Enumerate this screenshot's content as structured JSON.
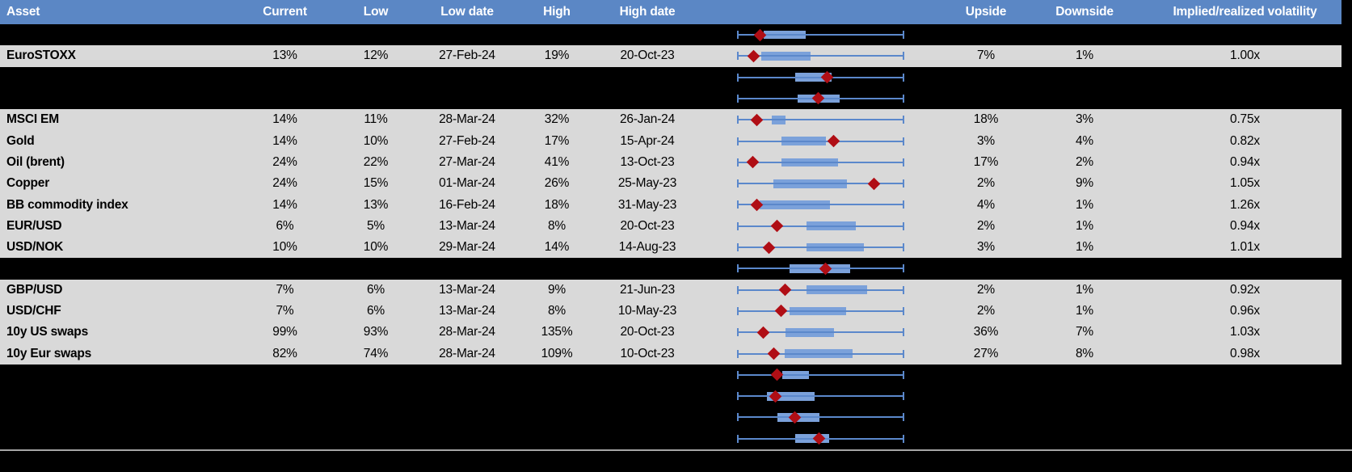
{
  "colors": {
    "header_bg": "#5b87c5",
    "row_bg": "#d9d9d9",
    "hidden_row_bg": "#000000",
    "whisker_blue": "#5b88cb",
    "box_blue": "#7ba1da",
    "marker_red": "#b00e15",
    "bottom_divider": "#a6a6a6"
  },
  "chart_data": {
    "type": "table",
    "note_type": "table with per-row horizontal box-whisker plots; whisker spans low-to-high, red diamond marks current level, positions given as 0-1 fractions of whisker span",
    "columns": [
      "Asset",
      "Current",
      "Low",
      "Low date",
      "High",
      "High date",
      "",
      "Upside",
      "Downside",
      "Implied/realized volatility"
    ],
    "rows": [
      {
        "type": "hidden",
        "label": "",
        "current": "",
        "low": "",
        "low_date": "",
        "high": "",
        "high_date": "",
        "upside": "",
        "downside": "",
        "ratio": "",
        "plot": {
          "box": [
            0.156,
            0.41
          ],
          "diamond": 0.132
        }
      },
      {
        "type": "data",
        "label": "EuroSTOXX",
        "current": "13%",
        "low": "12%",
        "low_date": "27-Feb-24",
        "high": "19%",
        "high_date": "20-Oct-23",
        "upside": "7%",
        "downside": "1%",
        "ratio": "1.00x",
        "plot": {
          "box": [
            0.141,
            0.439
          ],
          "diamond": 0.093
        }
      },
      {
        "type": "hidden",
        "label": "",
        "current": "",
        "low": "",
        "low_date": "",
        "high": "",
        "high_date": "",
        "upside": "",
        "downside": "",
        "ratio": "",
        "plot": {
          "box": [
            0.346,
            0.566
          ],
          "diamond": 0.537
        }
      },
      {
        "type": "hidden",
        "label": "",
        "current": "",
        "low": "",
        "low_date": "",
        "high": "",
        "high_date": "",
        "upside": "",
        "downside": "",
        "ratio": "",
        "plot": {
          "box": [
            0.361,
            0.615
          ],
          "diamond": 0.483
        }
      },
      {
        "type": "data",
        "label": "MSCI EM",
        "current": "14%",
        "low": "11%",
        "low_date": "28-Mar-24",
        "high": "32%",
        "high_date": "26-Jan-24",
        "upside": "18%",
        "downside": "3%",
        "ratio": "0.75x",
        "plot": {
          "box": [
            0.205,
            0.288
          ],
          "diamond": 0.117
        }
      },
      {
        "type": "data",
        "label": "Gold",
        "current": "14%",
        "low": "10%",
        "low_date": "27-Feb-24",
        "high": "17%",
        "high_date": "15-Apr-24",
        "upside": "3%",
        "downside": "4%",
        "ratio": "0.82x",
        "plot": {
          "box": [
            0.263,
            0.532
          ],
          "diamond": 0.576
        }
      },
      {
        "type": "data",
        "label": "Oil (brent)",
        "current": "24%",
        "low": "22%",
        "low_date": "27-Mar-24",
        "high": "41%",
        "high_date": "13-Oct-23",
        "upside": "17%",
        "downside": "2%",
        "ratio": "0.94x",
        "plot": {
          "box": [
            0.263,
            0.605
          ],
          "diamond": 0.088
        }
      },
      {
        "type": "data",
        "label": "Copper",
        "current": "24%",
        "low": "15%",
        "low_date": "01-Mar-24",
        "high": "26%",
        "high_date": "25-May-23",
        "upside": "2%",
        "downside": "9%",
        "ratio": "1.05x",
        "plot": {
          "box": [
            0.215,
            0.659
          ],
          "diamond": 0.824
        }
      },
      {
        "type": "data",
        "label": "BB commodity index",
        "current": "14%",
        "low": "13%",
        "low_date": "16-Feb-24",
        "high": "18%",
        "high_date": "31-May-23",
        "upside": "4%",
        "downside": "1%",
        "ratio": "1.26x",
        "plot": {
          "box": [
            0.132,
            0.556
          ],
          "diamond": 0.117
        }
      },
      {
        "type": "data",
        "label": "EUR/USD",
        "current": "6%",
        "low": "5%",
        "low_date": "13-Mar-24",
        "high": "8%",
        "high_date": "20-Oct-23",
        "upside": "2%",
        "downside": "1%",
        "ratio": "0.94x",
        "plot": {
          "box": [
            0.415,
            0.712
          ],
          "diamond": 0.239
        }
      },
      {
        "type": "data",
        "label": "USD/NOK",
        "current": "10%",
        "low": "10%",
        "low_date": "29-Mar-24",
        "high": "14%",
        "high_date": "14-Aug-23",
        "upside": "3%",
        "downside": "1%",
        "ratio": "1.01x",
        "plot": {
          "box": [
            0.415,
            0.761
          ],
          "diamond": 0.19
        }
      },
      {
        "type": "hidden",
        "label": "",
        "current": "",
        "low": "",
        "low_date": "",
        "high": "",
        "high_date": "",
        "upside": "",
        "downside": "",
        "ratio": "",
        "plot": {
          "box": [
            0.312,
            0.678
          ],
          "diamond": 0.527
        }
      },
      {
        "type": "data",
        "label": "GBP/USD",
        "current": "7%",
        "low": "6%",
        "low_date": "13-Mar-24",
        "high": "9%",
        "high_date": "21-Jun-23",
        "upside": "2%",
        "downside": "1%",
        "ratio": "0.92x",
        "plot": {
          "box": [
            0.415,
            0.78
          ],
          "diamond": 0.283
        }
      },
      {
        "type": "data",
        "label": "USD/CHF",
        "current": "7%",
        "low": "6%",
        "low_date": "13-Mar-24",
        "high": "8%",
        "high_date": "10-May-23",
        "upside": "2%",
        "downside": "1%",
        "ratio": "0.96x",
        "plot": {
          "box": [
            0.312,
            0.654
          ],
          "diamond": 0.259
        }
      },
      {
        "type": "data",
        "label": "10y US swaps",
        "current": "99%",
        "low": "93%",
        "low_date": "28-Mar-24",
        "high": "135%",
        "high_date": "20-Oct-23",
        "upside": "36%",
        "downside": "7%",
        "ratio": "1.03x",
        "plot": {
          "box": [
            0.288,
            0.58
          ],
          "diamond": 0.156
        }
      },
      {
        "type": "data",
        "label": "10y Eur swaps",
        "current": "82%",
        "low": "74%",
        "low_date": "28-Mar-24",
        "high": "109%",
        "high_date": "10-Oct-23",
        "upside": "27%",
        "downside": "8%",
        "ratio": "0.98x",
        "plot": {
          "box": [
            0.283,
            0.693
          ],
          "diamond": 0.215
        }
      },
      {
        "type": "hidden",
        "label": "",
        "current": "",
        "low": "",
        "low_date": "",
        "high": "",
        "high_date": "",
        "upside": "",
        "downside": "",
        "ratio": "",
        "plot": {
          "box": [
            0.268,
            0.429
          ],
          "diamond": 0.239
        }
      },
      {
        "type": "hidden",
        "label": "",
        "current": "",
        "low": "",
        "low_date": "",
        "high": "",
        "high_date": "",
        "upside": "",
        "downside": "",
        "ratio": "",
        "plot": {
          "box": [
            0.176,
            0.463
          ],
          "diamond": 0.229
        }
      },
      {
        "type": "hidden",
        "label": "",
        "current": "",
        "low": "",
        "low_date": "",
        "high": "",
        "high_date": "",
        "upside": "",
        "downside": "",
        "ratio": "",
        "plot": {
          "box": [
            0.239,
            0.493
          ],
          "diamond": 0.346
        }
      },
      {
        "type": "hidden",
        "label": "",
        "current": "",
        "low": "",
        "low_date": "",
        "high": "",
        "high_date": "",
        "upside": "",
        "downside": "",
        "ratio": "",
        "plot": {
          "box": [
            0.346,
            0.551
          ],
          "diamond": 0.488
        }
      }
    ]
  }
}
